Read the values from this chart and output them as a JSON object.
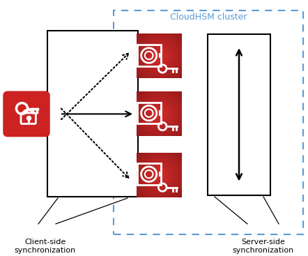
{
  "bg_color": "#ffffff",
  "cloudhsm_border_color": "#5b9bd5",
  "cloudhsm_label": "CloudHSM cluster",
  "cloudhsm_label_color": "#5b9bd5",
  "client_box_color": "#000000",
  "server_box_color": "#000000",
  "arrow_color": "#000000",
  "label_client": "Client-side\nsynchronization",
  "label_server": "Server-side\nsynchronization",
  "hsm_red": "#d42b2b",
  "hsm_red_dark": "#9b1c1c",
  "icon_white": "#ffffff",
  "key_lock_red": "#cc2222",
  "key_lock_red_border": "#cc2222"
}
